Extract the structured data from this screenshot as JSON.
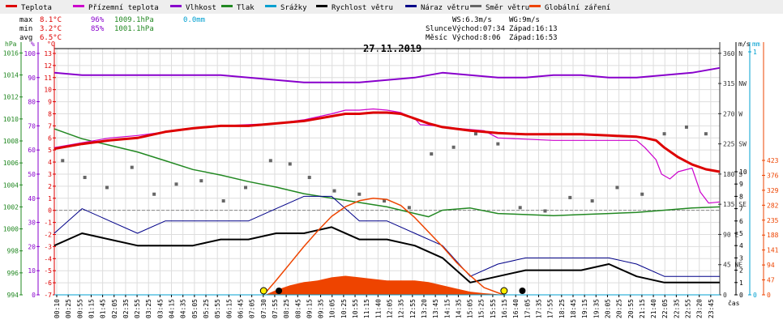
{
  "legend": [
    {
      "label": "Teplota",
      "color": "#dd0000"
    },
    {
      "label": "Přízemní teplota",
      "color": "#cc00cc"
    },
    {
      "label": "Vlhkost",
      "color": "#8800cc"
    },
    {
      "label": "Tlak",
      "color": "#228822"
    },
    {
      "label": "Srážky",
      "color": "#00a0d0"
    },
    {
      "label": "Rychlost větru",
      "color": "#000000"
    },
    {
      "label": "Náraz větru",
      "color": "#000088"
    },
    {
      "label": "Směr větru",
      "color": "#666666"
    },
    {
      "label": "Globální záření",
      "color": "#ee4400"
    }
  ],
  "stats": {
    "max": {
      "label": "max",
      "temp": "8.1°C",
      "hum": "96%",
      "press": "1009.1hPa",
      "rain": "0.0mm"
    },
    "min": {
      "label": "min",
      "temp": "3.2°C",
      "hum": "85%",
      "press": "1001.1hPa"
    },
    "avg": {
      "label": "avg",
      "temp": "6.5°C"
    }
  },
  "info": {
    "ws": "WS:6.3m/s",
    "wg": "WG:9m/s",
    "sun_label": "Slunce",
    "sun_rise": "Východ:07:34",
    "sun_set": "Západ:16:13",
    "moon_label": "Měsíc",
    "moon_rise": "Východ:8:06",
    "moon_set": "Západ:16:53"
  },
  "colors": {
    "temp": "#dd0000",
    "ground_temp": "#cc00cc",
    "humidity": "#8800cc",
    "pressure": "#228822",
    "rain": "#00a0d0",
    "wind": "#000000",
    "gust": "#000088",
    "direction": "#666666",
    "radiation": "#ee4400",
    "grid": "#dddddd"
  },
  "chart_data": {
    "type": "line",
    "title": "27.11.2019",
    "xlabel": "čas",
    "x_unit": "hours",
    "xlim": [
      0,
      24
    ],
    "x_ticks": [
      "00:10",
      "00:25",
      "00:55",
      "01:15",
      "01:45",
      "02:05",
      "02:35",
      "02:55",
      "03:25",
      "03:45",
      "04:15",
      "04:35",
      "05:05",
      "05:25",
      "05:55",
      "06:15",
      "06:45",
      "07:05",
      "07:30",
      "07:55",
      "08:25",
      "08:45",
      "09:15",
      "09:35",
      "10:05",
      "10:25",
      "10:55",
      "11:15",
      "11:40",
      "12:05",
      "12:35",
      "12:55",
      "13:20",
      "13:45",
      "14:15",
      "14:35",
      "15:05",
      "15:25",
      "15:55",
      "16:15",
      "16:40",
      "17:05",
      "17:35",
      "17:55",
      "18:25",
      "18:45",
      "19:15",
      "19:35",
      "20:05",
      "20:25",
      "20:55",
      "21:15",
      "21:40",
      "22:05",
      "22:35",
      "22:55",
      "23:20",
      "23:45"
    ],
    "axes": {
      "pressure": {
        "label": "hPa",
        "ticks": [
          "994",
          "996",
          "998",
          "1000",
          "1002",
          "1004",
          "1006",
          "1008",
          "1010",
          "1012",
          "1014",
          "1016"
        ],
        "range": [
          994,
          1016.4
        ]
      },
      "humidity": {
        "label": "%",
        "ticks": [
          "0",
          "10",
          "20",
          "30",
          "40",
          "50",
          "60",
          "70",
          "80",
          "90",
          "100"
        ],
        "range": [
          0,
          102
        ]
      },
      "temperature": {
        "label": "°C",
        "ticks": [
          "-7",
          "-6",
          "-5",
          "-4",
          "-3",
          "-2",
          "-1",
          "0",
          "1",
          "2",
          "3",
          "4",
          "5",
          "6",
          "7",
          "8",
          "9",
          "10",
          "11",
          "12",
          "13"
        ],
        "range": [
          -7,
          13.4
        ]
      },
      "direction": {
        "label": "",
        "ticks": [
          "0",
          "45 NE",
          "90 E",
          "135 SE",
          "180 S",
          "225 SW",
          "270 W",
          "315 NW",
          "360 N"
        ],
        "range": [
          0,
          367
        ]
      },
      "wind": {
        "label": "m/s",
        "ticks": [
          "0",
          "1",
          "2",
          "3",
          "4",
          "5",
          "6",
          "7",
          "8",
          "9",
          "10"
        ],
        "range": [
          0,
          27
        ]
      },
      "rain": {
        "label": "mm",
        "ticks": [
          "0",
          "1"
        ],
        "range": [
          0,
          1.02
        ]
      },
      "radiation": {
        "label": "",
        "ticks": [
          "0",
          "47",
          "94",
          "141",
          "188",
          "235",
          "282",
          "329",
          "376",
          "423"
        ],
        "range": [
          0,
          1000
        ]
      }
    },
    "series": [
      {
        "key": "temp",
        "name": "Teplota",
        "axis": "temperature",
        "x": [
          0,
          1,
          2,
          3,
          4,
          5,
          6,
          7,
          8,
          9,
          10,
          10.5,
          11,
          11.5,
          12,
          12.5,
          13,
          13.5,
          14,
          15,
          16,
          17,
          18,
          19,
          20,
          21,
          21.3,
          21.7,
          22,
          22.5,
          23,
          23.5,
          24
        ],
        "values": [
          5.1,
          5.5,
          5.8,
          6.0,
          6.5,
          6.8,
          7.0,
          7.0,
          7.2,
          7.4,
          7.8,
          8.0,
          8.0,
          8.1,
          8.1,
          8.0,
          7.6,
          7.2,
          6.9,
          6.6,
          6.4,
          6.3,
          6.3,
          6.3,
          6.2,
          6.1,
          6.0,
          5.8,
          5.2,
          4.4,
          3.8,
          3.4,
          3.2
        ]
      },
      {
        "key": "ground_temp",
        "name": "Přízemní teplota",
        "axis": "temperature",
        "x": [
          0,
          1,
          2,
          3,
          4,
          5,
          6,
          7,
          8,
          9,
          10,
          10.5,
          11,
          11.5,
          12,
          12.5,
          13,
          13.2,
          13.8,
          14.5,
          15.5,
          16,
          17,
          18,
          19,
          20,
          21,
          21.3,
          21.7,
          21.9,
          22.2,
          22.5,
          23,
          23.3,
          23.6,
          24
        ],
        "values": [
          5.2,
          5.6,
          6.0,
          6.2,
          6.5,
          6.8,
          7.0,
          7.1,
          7.2,
          7.5,
          8.0,
          8.3,
          8.3,
          8.4,
          8.3,
          8.1,
          7.6,
          7.1,
          7.0,
          6.8,
          6.6,
          6.0,
          5.9,
          5.8,
          5.8,
          5.8,
          5.8,
          5.2,
          4.2,
          3.0,
          2.6,
          3.2,
          3.5,
          1.5,
          0.6,
          0.7
        ]
      },
      {
        "key": "humidity",
        "name": "Vlhkost",
        "axis": "humidity",
        "x": [
          0,
          1,
          2,
          3,
          4,
          5,
          6,
          7,
          8,
          9,
          10,
          11,
          12,
          13,
          14,
          15,
          16,
          17,
          18,
          19,
          20,
          21,
          22,
          23,
          24
        ],
        "values": [
          92,
          91,
          91,
          91,
          91,
          91,
          91,
          90,
          89,
          88,
          88,
          88,
          89,
          90,
          92,
          91,
          90,
          90,
          91,
          91,
          90,
          90,
          91,
          92,
          94
        ]
      },
      {
        "key": "pressure",
        "name": "Tlak",
        "axis": "pressure",
        "x": [
          0,
          1,
          2,
          3,
          4,
          5,
          6,
          7,
          8,
          9,
          10,
          11,
          12,
          13,
          13.5,
          14,
          15,
          16,
          17,
          18,
          19,
          20,
          21,
          22,
          23,
          24
        ],
        "values": [
          1009.1,
          1008.2,
          1007.6,
          1007.0,
          1006.2,
          1005.4,
          1004.9,
          1004.3,
          1003.8,
          1003.2,
          1002.8,
          1002.4,
          1002.0,
          1001.4,
          1001.1,
          1001.7,
          1001.9,
          1001.4,
          1001.3,
          1001.2,
          1001.3,
          1001.4,
          1001.5,
          1001.7,
          1001.9,
          1002.0
        ]
      },
      {
        "key": "wind",
        "name": "Rychlost větru",
        "axis": "wind",
        "x": [
          0,
          1,
          2,
          3,
          4,
          5,
          6,
          7,
          8,
          9,
          10,
          11,
          12,
          13,
          14,
          15,
          16,
          17,
          18,
          19,
          20,
          21,
          22,
          23,
          24
        ],
        "values": [
          4,
          5,
          4.5,
          4,
          4,
          4,
          4.5,
          4.5,
          5,
          5,
          5.5,
          4.5,
          4.5,
          4,
          3,
          1,
          1.5,
          2,
          2,
          2,
          2.5,
          1.5,
          1,
          1,
          1
        ]
      },
      {
        "key": "gust",
        "name": "Náraz větru",
        "axis": "wind",
        "x": [
          0,
          1,
          2,
          3,
          4,
          5,
          6,
          7,
          8,
          9,
          10,
          11,
          12,
          13,
          14,
          15,
          16,
          17,
          18,
          19,
          20,
          21,
          22,
          23,
          24
        ],
        "values": [
          5,
          7,
          6,
          5,
          6,
          6,
          6,
          6,
          7,
          8,
          8,
          6,
          6,
          5,
          4,
          1.5,
          2.5,
          3,
          3,
          3,
          3,
          2.5,
          1.5,
          1.5,
          1.5
        ]
      },
      {
        "key": "radiation",
        "name": "Globální záření",
        "axis": "temperature",
        "x": [
          7.55,
          8,
          8.5,
          9,
          9.5,
          10,
          10.5,
          11,
          11.5,
          12,
          12.5,
          13,
          13.5,
          14,
          14.5,
          15,
          15.5,
          16.2
        ],
        "values": [
          -7,
          -5.8,
          -4.4,
          -3.0,
          -1.7,
          -0.5,
          0.3,
          0.8,
          1.0,
          0.9,
          0.4,
          -0.6,
          -1.8,
          -3.0,
          -4.3,
          -5.4,
          -6.4,
          -7
        ]
      },
      {
        "key": "radiation_measured",
        "name": "Globální záření",
        "axis": "radiation",
        "x": [
          7.6,
          8,
          8.5,
          9,
          9.5,
          10,
          10.5,
          11,
          11.5,
          12,
          12.5,
          13,
          13.5,
          14,
          14.5,
          15,
          15.5,
          16,
          16.2
        ],
        "values": [
          0,
          15,
          30,
          40,
          45,
          55,
          60,
          55,
          50,
          45,
          45,
          45,
          40,
          30,
          20,
          10,
          5,
          2,
          0
        ]
      },
      {
        "key": "rain",
        "name": "Srážky",
        "axis": "rain",
        "x": [
          0,
          24
        ],
        "values": [
          0,
          0
        ]
      }
    ],
    "direction_points": {
      "x": [
        0.3,
        1.1,
        1.9,
        2.8,
        3.6,
        4.4,
        5.3,
        6.1,
        6.9,
        7.8,
        8.5,
        9.2,
        10.1,
        11.0,
        11.9,
        12.8,
        13.6,
        14.4,
        15.2,
        16.0,
        16.8,
        17.7,
        18.6,
        19.4,
        20.3,
        21.2,
        22.0,
        22.8,
        23.5
      ],
      "values": [
        200,
        175,
        160,
        190,
        150,
        165,
        170,
        140,
        160,
        200,
        195,
        175,
        155,
        150,
        140,
        130,
        210,
        220,
        240,
        225,
        130,
        125,
        145,
        140,
        160,
        150,
        240,
        250,
        240
      ]
    },
    "sun_markers": [
      7.55,
      16.22
    ],
    "moon_markers": [
      8.1,
      16.88
    ]
  }
}
